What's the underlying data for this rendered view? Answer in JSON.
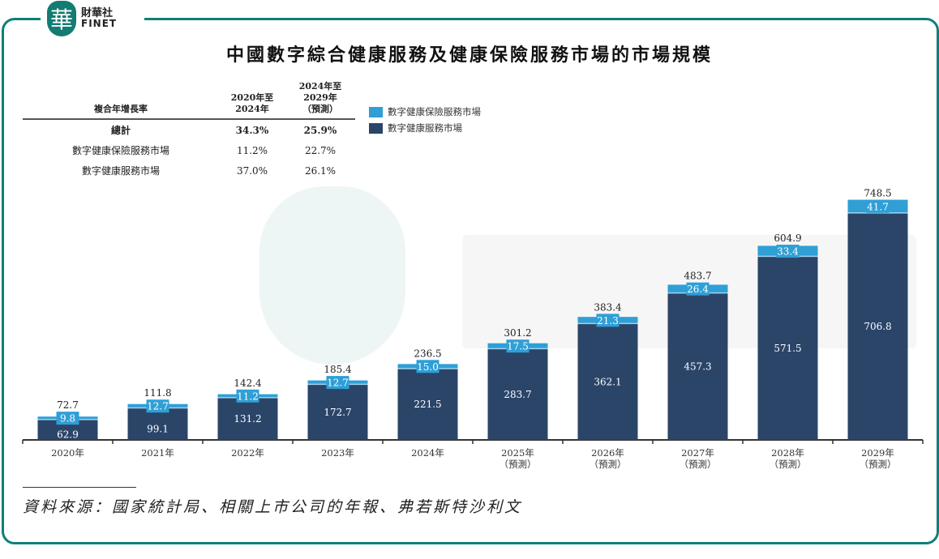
{
  "logo": {
    "mark": "華",
    "cn": "財華社",
    "en": "FINET"
  },
  "title": "中國數字綜合健康服務及健康保險服務市場的市場規模",
  "cagr_table": {
    "header": [
      "複合年增長率",
      "2020年至\n2024年",
      "2024年至\n2029年\n（預測）"
    ],
    "rows": [
      {
        "label": "總計",
        "a": "34.3%",
        "b": "25.9%"
      },
      {
        "label": "數字健康保險服務市場",
        "a": "11.2%",
        "b": "22.7%"
      },
      {
        "label": "數字健康服務市場",
        "a": "37.0%",
        "b": "26.1%"
      }
    ]
  },
  "chart_data": {
    "type": "bar",
    "stacked": true,
    "categories": [
      "2020年",
      "2021年",
      "2022年",
      "2023年",
      "2024年",
      "2025年\n（預測）",
      "2026年\n（預測）",
      "2027年\n（預測）",
      "2028年\n（預測）",
      "2029年\n（預測）"
    ],
    "series": [
      {
        "name": "數字健康服務市場",
        "color": "#2b4569",
        "values": [
          62.9,
          99.1,
          131.2,
          172.7,
          221.5,
          283.7,
          362.1,
          457.3,
          571.5,
          706.8
        ]
      },
      {
        "name": "數字健康保險服務市場",
        "color": "#2f9fd6",
        "values": [
          9.8,
          12.7,
          11.2,
          12.7,
          15.0,
          17.5,
          21.3,
          26.4,
          33.4,
          41.7
        ]
      }
    ],
    "totals": [
      "72.7",
      "111.8",
      "142.4",
      "185.4",
      "236.5",
      "301.2",
      "383.4",
      "483.7",
      "604.9",
      "748.5"
    ],
    "series_labels": [
      [
        "62.9",
        "99.1",
        "131.2",
        "172.7",
        "221.5",
        "283.7",
        "362.1",
        "457.3",
        "571.5",
        "706.8"
      ],
      [
        "9.8",
        "12.7",
        "11.2",
        "12.7",
        "15.0",
        "17.5",
        "21.3",
        "26.4",
        "33.4",
        "41.7"
      ]
    ],
    "ylim": [
      0,
      760
    ],
    "legend": "top-center",
    "grid": false
  },
  "source": "資料來源：國家統計局、相關上市公司的年報、弗若斯特沙利文"
}
